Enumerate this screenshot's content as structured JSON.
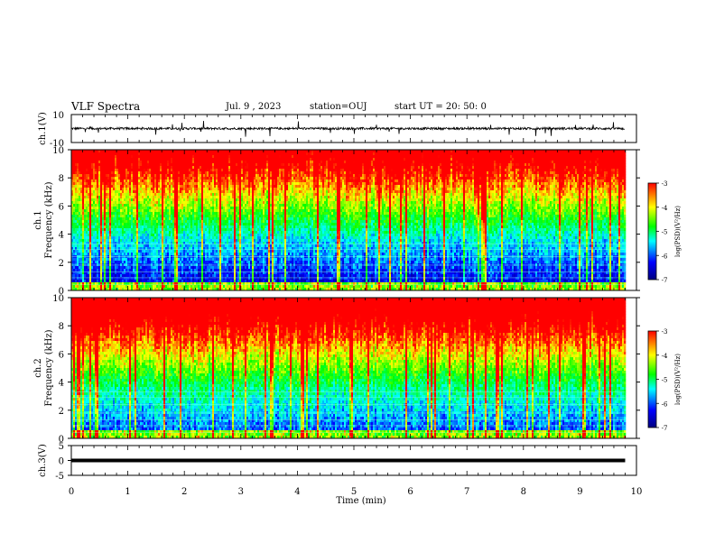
{
  "header": {
    "title": "VLF Spectra",
    "date": "Jul. 9 , 2023",
    "station": "station=OUJ",
    "start": "start UT = 20: 50: 0"
  },
  "chart_data": [
    {
      "type": "line",
      "ylabel": "ch.1(V)",
      "ylim": [
        -10,
        10
      ],
      "yticks": [
        "10",
        "-10"
      ],
      "xlim": [
        0,
        10
      ],
      "note": "waveform noise near 0 V with frequent spikes"
    },
    {
      "type": "heatmap",
      "ylabel_line1": "ch.1",
      "ylabel_line2": "Frequency (kHz)",
      "ylim": [
        0,
        10
      ],
      "yticks": [
        "0",
        "2",
        "4",
        "6",
        "8",
        "10"
      ],
      "xlim": [
        0,
        10
      ],
      "data_end_min": 9.8,
      "colorbar": {
        "label": "log(PSD)(V²/Hz)",
        "range": [
          -7,
          -3
        ],
        "ticks": [
          "-3",
          "-4",
          "-5",
          "-6",
          "-7"
        ]
      }
    },
    {
      "type": "heatmap",
      "ylabel_line1": "ch.2",
      "ylabel_line2": "Frequency (kHz)",
      "ylim": [
        0,
        10
      ],
      "yticks": [
        "0",
        "2",
        "4",
        "6",
        "8",
        "10"
      ],
      "xlim": [
        0,
        10
      ],
      "data_end_min": 9.8,
      "colorbar": {
        "label": "log(PSD)(V²/Hz)",
        "range": [
          -7,
          -3
        ],
        "ticks": [
          "-3",
          "-4",
          "-5",
          "-6",
          "-7"
        ]
      }
    },
    {
      "type": "line",
      "ylabel": "ch.3(V)",
      "ylim": [
        -5,
        5
      ],
      "yticks": [
        "5",
        "0",
        "-5"
      ],
      "xlim": [
        0,
        10
      ],
      "series": [
        {
          "x": [
            0,
            9.8
          ],
          "y": [
            0,
            0
          ]
        }
      ]
    }
  ],
  "xaxis": {
    "label": "Time (min)",
    "ticks": [
      "0",
      "1",
      "2",
      "3",
      "4",
      "5",
      "6",
      "7",
      "8",
      "9",
      "10"
    ]
  },
  "colors": {
    "background": "#ffffff",
    "axes": "#000000",
    "cmap": [
      "#00007f",
      "#0000ff",
      "#00ffff",
      "#00ff00",
      "#ffff00",
      "#ff0000"
    ]
  }
}
